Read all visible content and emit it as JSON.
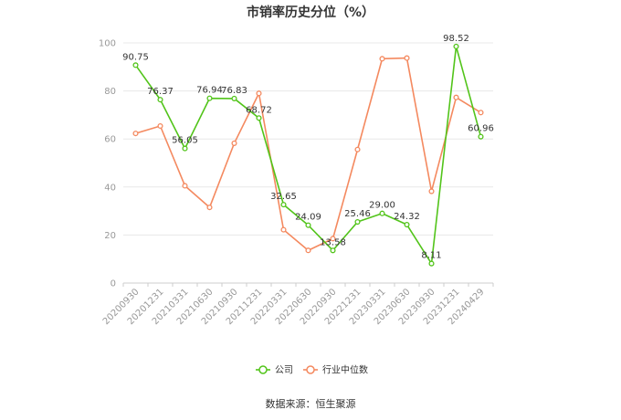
{
  "chart_data": {
    "type": "line",
    "title": "市销率历史分位（%）",
    "xlabel": "",
    "ylabel": "",
    "ylim": [
      0,
      100
    ],
    "yticks": [
      0,
      20,
      40,
      60,
      80,
      100
    ],
    "grid": true,
    "legend_position": "bottom",
    "categories": [
      "20200930",
      "20201231",
      "20210331",
      "20210630",
      "20210930",
      "20211231",
      "20220331",
      "20220630",
      "20220930",
      "20221231",
      "20230331",
      "20230630",
      "20230930",
      "20231231",
      "20240429"
    ],
    "series": [
      {
        "name": "公司",
        "color": "#52c41a",
        "show_labels": true,
        "values": [
          90.75,
          76.37,
          56.05,
          76.94,
          76.83,
          68.72,
          32.65,
          24.09,
          13.58,
          25.46,
          29.0,
          24.32,
          8.11,
          98.52,
          60.96
        ],
        "labels": [
          "90.75",
          "76.37",
          "56.05",
          "76.94",
          "76.83",
          "68.72",
          "32.65",
          "24.09",
          "13.58",
          "25.46",
          "29.00",
          "24.32",
          "8.11",
          "98.52",
          "60.96"
        ]
      },
      {
        "name": "行业中位数",
        "color": "#f4895f",
        "show_labels": false,
        "values": [
          62.3,
          65.4,
          40.5,
          31.5,
          58.2,
          79.0,
          22.2,
          13.6,
          18.5,
          55.6,
          93.4,
          93.7,
          38.2,
          77.3,
          71.0
        ]
      }
    ]
  },
  "source": "数据来源：恒生聚源"
}
